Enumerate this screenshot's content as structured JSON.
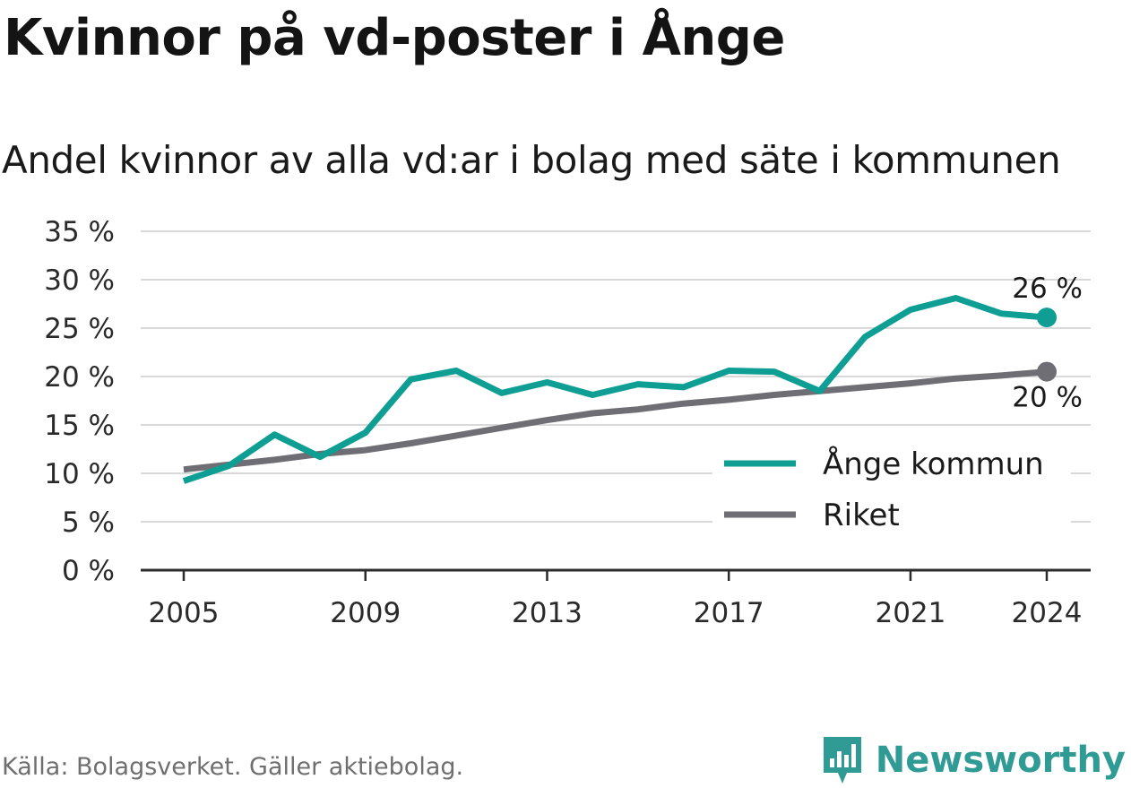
{
  "header": {
    "title": "Kvinnor på vd-poster i Ånge",
    "subtitle": "Andel kvinnor av alla vd:ar i bolag med säte i kommunen"
  },
  "footer": {
    "source": "Källa: Bolagsverket. Gäller aktiebolag.",
    "brand": "Newsworthy"
  },
  "colors": {
    "ange": "#0e9e94",
    "riket": "#6e6e74",
    "grid": "#d9d9d9",
    "axis": "#2b2b2b",
    "brand": "#2f9b94"
  },
  "chart_data": {
    "type": "line",
    "title": "Kvinnor på vd-poster i Ånge",
    "subtitle": "Andel kvinnor av alla vd:ar i bolag med säte i kommunen",
    "xlabel": "",
    "ylabel": "",
    "x": [
      2005,
      2006,
      2007,
      2008,
      2009,
      2010,
      2011,
      2012,
      2013,
      2014,
      2015,
      2016,
      2017,
      2018,
      2019,
      2020,
      2021,
      2022,
      2023,
      2024
    ],
    "x_ticks": [
      2005,
      2009,
      2013,
      2017,
      2021,
      2024
    ],
    "x_tick_labels": [
      "2005",
      "2009",
      "2013",
      "2017",
      "2021",
      "2024"
    ],
    "ylim": [
      0,
      35
    ],
    "y_ticks": [
      0,
      5,
      10,
      15,
      20,
      25,
      30,
      35
    ],
    "y_tick_labels": [
      "0 %",
      "5 %",
      "10 %",
      "15 %",
      "20 %",
      "25 %",
      "30 %",
      "35 %"
    ],
    "grid": true,
    "legend_position": "bottom-right",
    "series": [
      {
        "name": "Ånge kommun",
        "color": "#0e9e94",
        "values": [
          9.2,
          10.8,
          14.0,
          11.7,
          14.2,
          19.7,
          20.6,
          18.3,
          19.4,
          18.1,
          19.2,
          18.9,
          20.6,
          20.5,
          18.5,
          24.1,
          26.9,
          28.1,
          26.5,
          26.1
        ],
        "end_label": "26 %"
      },
      {
        "name": "Riket",
        "color": "#6e6e74",
        "values": [
          10.4,
          10.9,
          11.4,
          12.0,
          12.4,
          13.1,
          13.9,
          14.7,
          15.5,
          16.2,
          16.6,
          17.2,
          17.6,
          18.1,
          18.5,
          18.9,
          19.3,
          19.8,
          20.1,
          20.5
        ],
        "end_label": "20 %"
      }
    ]
  }
}
